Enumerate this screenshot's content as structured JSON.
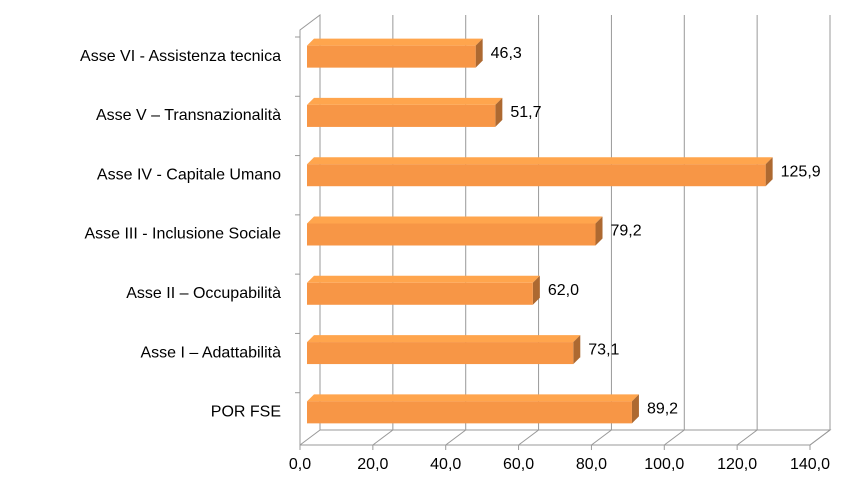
{
  "chart_data": {
    "type": "bar",
    "orientation": "horizontal",
    "categories": [
      "Asse VI - Assistenza tecnica",
      "Asse V – Transnazionalità",
      "Asse IV - Capitale Umano",
      "Asse III - Inclusione Sociale",
      "Asse II – Occupabilità",
      "Asse I – Adattabilità",
      "POR FSE"
    ],
    "values": [
      46.3,
      51.7,
      125.9,
      79.2,
      62.0,
      73.1,
      89.2
    ],
    "value_labels": [
      "46,3",
      "51,7",
      "125,9",
      "79,2",
      "62,0",
      "73,1",
      "89,2"
    ],
    "color": "#f79646",
    "xlim": [
      0,
      140
    ],
    "xticks": [
      {
        "value": 0,
        "label": "0,0"
      },
      {
        "value": 20,
        "label": "20,0"
      },
      {
        "value": 40,
        "label": "40,0"
      },
      {
        "value": 60,
        "label": "60,0"
      },
      {
        "value": 80,
        "label": "80,0"
      },
      {
        "value": 100,
        "label": "100,0"
      },
      {
        "value": 120,
        "label": "120,0"
      },
      {
        "value": 140,
        "label": "140,0"
      }
    ],
    "grid": true
  }
}
